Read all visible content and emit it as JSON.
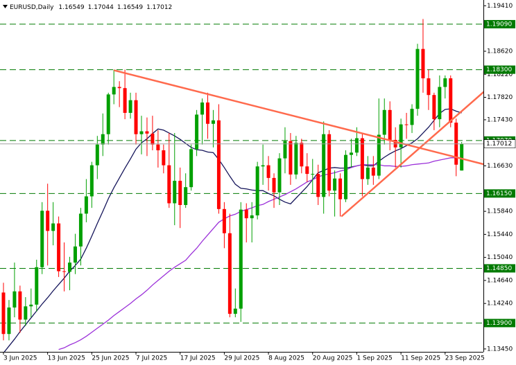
{
  "chart_data": {
    "type": "candlestick",
    "title": "EURUSD,Daily",
    "categories": [
      "3 Jun 2025",
      null,
      null,
      null,
      null,
      null,
      null,
      null,
      "13 Jun 2025",
      null,
      null,
      null,
      null,
      null,
      null,
      null,
      "25 Jun 2025",
      null,
      null,
      null,
      null,
      null,
      null,
      null,
      "7 Jul 2025",
      null,
      null,
      null,
      null,
      null,
      null,
      null,
      "17 Jul 2025",
      null,
      null,
      null,
      null,
      null,
      null,
      null,
      "29 Jul 2025",
      null,
      null,
      null,
      null,
      null,
      null,
      null,
      "8 Aug 2025",
      null,
      null,
      null,
      null,
      null,
      null,
      null,
      "20 Aug 2025",
      null,
      null,
      null,
      null,
      null,
      null,
      null,
      "1 Sep 2025",
      null,
      null,
      null,
      null,
      null,
      null,
      null,
      "11 Sep 2025",
      null,
      null,
      null,
      null,
      null,
      null,
      null,
      "23 Sep 2025",
      null,
      null,
      null
    ],
    "open": [
      1.1443,
      1.1371,
      1.1417,
      1.1445,
      1.1396,
      1.1419,
      1.1422,
      1.1487,
      1.1585,
      1.155,
      1.1563,
      1.148,
      1.1479,
      1.1495,
      1.1523,
      1.158,
      1.161,
      1.1664,
      1.17,
      1.1718,
      1.1787,
      1.18,
      1.1798,
      1.1755,
      1.1777,
      1.1718,
      1.1723,
      1.1719,
      1.17,
      1.169,
      1.1664,
      1.1598,
      1.1637,
      1.1595,
      1.1626,
      1.1692,
      1.1752,
      1.1773,
      1.1736,
      1.1742,
      1.1588,
      1.1546,
      1.1406,
      1.1415,
      1.1587,
      1.1572,
      1.1577,
      1.1662,
      1.1664,
      1.1642,
      1.1617,
      1.1676,
      1.1706,
      1.1648,
      1.1703,
      1.1662,
      1.1649,
      1.1649,
      1.1609,
      1.1718,
      1.162,
      1.1641,
      1.1605,
      1.1682,
      1.1686,
      1.1711,
      1.164,
      1.166,
      1.1646,
      1.1717,
      1.176,
      1.1708,
      1.1695,
      1.1735,
      1.1734,
      1.1762,
      1.1866,
      1.1815,
      1.1786,
      1.1744,
      1.18,
      1.1815,
      1.1738,
      1.16549
    ],
    "high": [
      1.146,
      1.143,
      1.1495,
      1.1455,
      1.1435,
      1.145,
      1.15,
      1.16,
      1.1632,
      1.16,
      1.1575,
      1.153,
      1.1505,
      1.1545,
      1.159,
      1.164,
      1.167,
      1.1715,
      1.1754,
      1.179,
      1.183,
      1.181,
      1.183,
      1.179,
      1.179,
      1.175,
      1.1747,
      1.175,
      1.1725,
      1.17,
      1.172,
      1.172,
      1.166,
      1.165,
      1.17,
      1.176,
      1.178,
      1.179,
      1.176,
      1.177,
      1.16,
      1.158,
      1.145,
      1.16,
      1.1598,
      1.16,
      1.167,
      1.17,
      1.168,
      1.165,
      1.1685,
      1.173,
      1.172,
      1.1715,
      1.171,
      1.1685,
      1.1675,
      1.1665,
      1.174,
      1.1725,
      1.1655,
      1.165,
      1.169,
      1.171,
      1.173,
      1.172,
      1.168,
      1.168,
      1.178,
      1.178,
      1.1775,
      1.173,
      1.1745,
      1.1755,
      1.177,
      1.1875,
      1.1918,
      1.183,
      1.179,
      1.182,
      1.182,
      1.182,
      1.1745,
      1.17044
    ],
    "low": [
      1.136,
      1.136,
      1.14,
      1.1373,
      1.1385,
      1.14,
      1.141,
      1.1475,
      1.149,
      1.1525,
      1.147,
      1.1445,
      1.1447,
      1.1475,
      1.149,
      1.1565,
      1.159,
      1.164,
      1.168,
      1.17,
      1.177,
      1.1765,
      1.1744,
      1.1745,
      1.17,
      1.1683,
      1.168,
      1.169,
      1.166,
      1.165,
      1.159,
      1.156,
      1.1555,
      1.159,
      1.162,
      1.168,
      1.17,
      1.171,
      1.1695,
      1.158,
      1.152,
      1.14,
      1.14,
      1.1392,
      1.153,
      1.153,
      1.157,
      1.163,
      1.162,
      1.159,
      1.1595,
      1.165,
      1.163,
      1.164,
      1.165,
      1.1635,
      1.1615,
      1.1595,
      1.158,
      1.161,
      1.1575,
      1.1575,
      1.16,
      1.166,
      1.168,
      1.161,
      1.163,
      1.163,
      1.164,
      1.17,
      1.169,
      1.166,
      1.166,
      1.171,
      1.172,
      1.175,
      1.179,
      1.176,
      1.1725,
      1.173,
      1.178,
      1.173,
      1.1645,
      1.16549
    ],
    "close": [
      1.1371,
      1.1417,
      1.1445,
      1.1396,
      1.1419,
      1.1422,
      1.1487,
      1.1585,
      1.155,
      1.1563,
      1.148,
      1.1479,
      1.1495,
      1.1523,
      1.158,
      1.161,
      1.1664,
      1.17,
      1.1718,
      1.1787,
      1.18,
      1.1798,
      1.1755,
      1.1777,
      1.1718,
      1.1723,
      1.1719,
      1.17,
      1.169,
      1.1664,
      1.1598,
      1.1637,
      1.1595,
      1.1626,
      1.1692,
      1.1752,
      1.1773,
      1.1736,
      1.1742,
      1.1588,
      1.1546,
      1.1406,
      1.1415,
      1.1587,
      1.1572,
      1.1577,
      1.1662,
      1.1664,
      1.1642,
      1.1617,
      1.1676,
      1.1706,
      1.1648,
      1.1703,
      1.1662,
      1.1649,
      1.1649,
      1.1609,
      1.1718,
      1.162,
      1.1641,
      1.1605,
      1.1682,
      1.1686,
      1.1711,
      1.164,
      1.166,
      1.1646,
      1.1717,
      1.176,
      1.1708,
      1.1695,
      1.1735,
      1.1734,
      1.1762,
      1.1866,
      1.1815,
      1.1786,
      1.1744,
      1.18,
      1.1815,
      1.1738,
      1.1665,
      1.17012
    ],
    "up_color": "#00a000",
    "down_color": "#ff0000",
    "ma_lines": [
      {
        "color": "#14145a",
        "values": [
          1.1338,
          1.135,
          1.1362,
          1.1375,
          1.1387,
          1.1399,
          1.1411,
          1.1423,
          1.1434,
          1.1446,
          1.1457,
          1.1468,
          1.148,
          1.149,
          1.1501,
          1.152,
          1.1541,
          1.1563,
          1.1584,
          1.1606,
          1.1625,
          1.1642,
          1.1659,
          1.1675,
          1.1692,
          1.1703,
          1.171,
          1.1719,
          1.1727,
          1.1725,
          1.172,
          1.1715,
          1.1709,
          1.1702,
          1.1695,
          1.1691,
          1.169,
          1.1687,
          1.1686,
          1.1674,
          1.166,
          1.1645,
          1.1631,
          1.1624,
          1.1623,
          1.1621,
          1.162,
          1.162,
          1.1615,
          1.1611,
          1.1605,
          1.16,
          1.1597,
          1.1607,
          1.1617,
          1.1627,
          1.1639,
          1.1651,
          1.1655,
          1.1659,
          1.166,
          1.1659,
          1.1659,
          1.1661,
          1.1663,
          1.1665,
          1.1663,
          1.1663,
          1.1671,
          1.1678,
          1.1684,
          1.1689,
          1.1693,
          1.1698,
          1.1703,
          1.171,
          1.172,
          1.173,
          1.1742,
          1.1754,
          1.1761,
          1.1762,
          1.1758,
          1.1755
        ]
      },
      {
        "color": "#9b30d9",
        "values": [
          null,
          null,
          null,
          null,
          null,
          null,
          null,
          null,
          null,
          null,
          1.1344,
          1.1347,
          1.1352,
          1.1356,
          1.1361,
          1.1367,
          1.1374,
          1.1381,
          1.1388,
          1.1395,
          1.1403,
          1.141,
          1.1417,
          1.1424,
          1.1432,
          1.1439,
          1.1447,
          1.1456,
          1.1464,
          1.1472,
          1.148,
          1.1487,
          1.1493,
          1.1499,
          1.151,
          1.152,
          1.1532,
          1.1543,
          1.1554,
          1.1565,
          1.1571,
          1.1576,
          1.1579,
          1.1584,
          1.1587,
          1.159,
          1.1594,
          1.1596,
          1.1601,
          1.1605,
          1.1609,
          1.1613,
          1.1618,
          1.1623,
          1.1629,
          1.1635,
          1.1639,
          1.1644,
          1.1647,
          1.1649,
          1.1651,
          1.1654,
          1.1656,
          1.166,
          1.1663,
          1.1665,
          1.1665,
          1.1665,
          1.1665,
          1.1663,
          1.1663,
          1.1662,
          1.1662,
          1.1663,
          1.1665,
          1.1666,
          1.1667,
          1.1668,
          1.1671,
          1.1673,
          1.1675,
          1.1677,
          1.1677,
          1.1677
        ]
      }
    ],
    "trendlines": [
      {
        "color": "#ff6a4d",
        "x": [
          20,
          87.3
        ],
        "y": [
          1.1829,
          1.1665
        ]
      },
      {
        "color": "#ff6a4d",
        "x": [
          61.2,
          87.3
        ],
        "y": [
          1.1575,
          1.1794
        ]
      }
    ],
    "levels": [
      {
        "value": 1.1909,
        "label": "1.19090"
      },
      {
        "value": 1.183,
        "label": "1.18300"
      },
      {
        "value": 1.1707,
        "label": "1.17070"
      },
      {
        "value": 1.1615,
        "label": "1.16150"
      },
      {
        "value": 1.1485,
        "label": "1.14850"
      },
      {
        "value": 1.139,
        "label": "1.13900"
      }
    ],
    "level_color": "#007a00",
    "ylim": [
      1.134,
      1.1951
    ],
    "yticks": [
      {
        "value": 1.1941,
        "label": "1.19410"
      },
      {
        "value": 1.1862,
        "label": "1.18620"
      },
      {
        "value": 1.1822,
        "label": "1.18220"
      },
      {
        "value": 1.1782,
        "label": "1.17820"
      },
      {
        "value": 1.1743,
        "label": "1.17430"
      },
      {
        "value": 1.1663,
        "label": "1.16630"
      },
      {
        "value": 1.1584,
        "label": "1.15840"
      },
      {
        "value": 1.1544,
        "label": "1.15440"
      },
      {
        "value": 1.1504,
        "label": "1.15040"
      },
      {
        "value": 1.1464,
        "label": "1.14640"
      },
      {
        "value": 1.1424,
        "label": "1.14240"
      },
      {
        "value": 1.1345,
        "label": "1.13450"
      }
    ]
  }
}
